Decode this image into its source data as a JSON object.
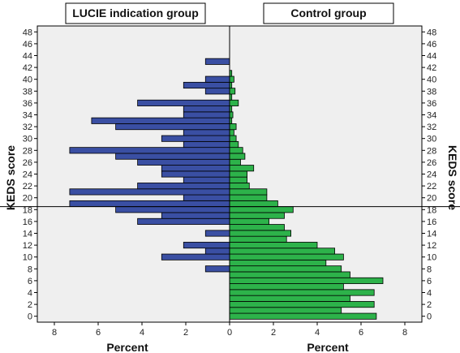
{
  "chart_data": {
    "type": "bar",
    "orientation": "horizontal-population-pyramid",
    "panels": [
      {
        "title": "LUCIE indication group",
        "xlabel": "Percent",
        "direction": "left",
        "color": "#3a4fa3"
      },
      {
        "title": "Control group",
        "xlabel": "Percent",
        "direction": "right",
        "color": "#2db24a"
      }
    ],
    "ylabel": "KEDS score",
    "ylim": [
      -1,
      49
    ],
    "yticks": [
      0,
      2,
      4,
      6,
      8,
      10,
      12,
      14,
      16,
      18,
      20,
      22,
      24,
      26,
      28,
      30,
      32,
      34,
      36,
      38,
      40,
      42,
      44,
      46,
      48
    ],
    "xticks": [
      8,
      6,
      4,
      2,
      0,
      2,
      4,
      6,
      8
    ],
    "xlim": [
      0,
      8.5
    ],
    "reference_line_y": 18.5,
    "grid": false,
    "legend": "none",
    "categories": [
      0,
      1,
      2,
      3,
      4,
      5,
      6,
      7,
      8,
      9,
      10,
      11,
      12,
      13,
      14,
      15,
      16,
      17,
      18,
      19,
      20,
      21,
      22,
      23,
      24,
      25,
      26,
      27,
      28,
      29,
      30,
      31,
      32,
      33,
      34,
      35,
      36,
      37,
      38,
      39,
      40,
      41,
      42,
      43,
      44
    ],
    "series": [
      {
        "name": "LUCIE indication group",
        "values": [
          0,
          0,
          0,
          0,
          0,
          0,
          0,
          0,
          1.1,
          0,
          3.1,
          1.1,
          2.1,
          0,
          1.1,
          0,
          4.2,
          3.1,
          5.2,
          7.3,
          2.1,
          7.3,
          4.2,
          2.1,
          3.1,
          3.1,
          4.2,
          5.2,
          7.3,
          2.1,
          3.1,
          2.1,
          5.2,
          6.3,
          2.1,
          2.1,
          4.2,
          0,
          1.1,
          2.1,
          1.1,
          0,
          0,
          1.1,
          0
        ]
      },
      {
        "name": "Control group",
        "values": [
          6.7,
          5.1,
          6.6,
          5.5,
          6.6,
          5.2,
          7.0,
          5.5,
          5.1,
          4.4,
          5.2,
          4.8,
          4.0,
          2.6,
          2.8,
          2.5,
          1.8,
          2.5,
          2.9,
          2.2,
          1.7,
          1.7,
          0.9,
          0.8,
          0.8,
          1.1,
          0.5,
          0.7,
          0.6,
          0.4,
          0.3,
          0.2,
          0.3,
          0.1,
          0.15,
          0.1,
          0.4,
          0.1,
          0.25,
          0.1,
          0.2,
          0.1,
          0,
          0,
          0
        ]
      }
    ]
  }
}
